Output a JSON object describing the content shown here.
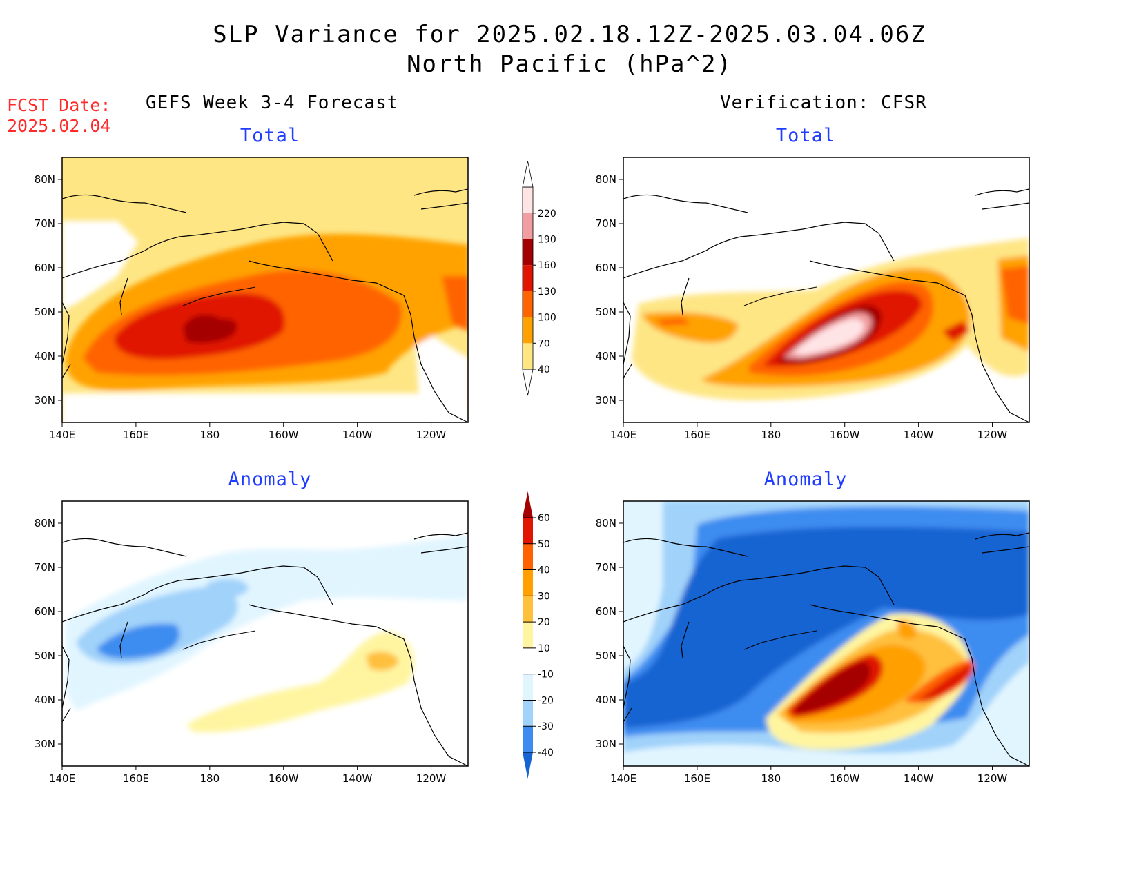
{
  "header": {
    "title_line1": "SLP Variance for 2025.02.18.12Z-2025.03.04.06Z",
    "title_line2": "North Pacific (hPa^2)",
    "fcst_label": "FCST Date:",
    "fcst_date": "2025.02.04"
  },
  "sections": {
    "left": "GEFS Week 3-4 Forecast",
    "right": "Verification: CFSR"
  },
  "panels": [
    {
      "id": "fc-total",
      "title": "Total"
    },
    {
      "id": "ver-total",
      "title": "Total"
    },
    {
      "id": "fc-anom",
      "title": "Anomaly"
    },
    {
      "id": "ver-anom",
      "title": "Anomaly"
    }
  ],
  "axes": {
    "lat_labels": [
      "80N",
      "70N",
      "60N",
      "50N",
      "40N",
      "30N"
    ],
    "lon_labels": [
      "140E",
      "160E",
      "180",
      "160W",
      "140W",
      "120W"
    ],
    "lat_range": [
      25,
      85
    ],
    "lon_range": [
      140,
      250
    ]
  },
  "colorbar_total": {
    "levels": [
      "40",
      "70",
      "100",
      "130",
      "160",
      "190",
      "220"
    ],
    "colors": [
      "#ffe680",
      "#ffa200",
      "#ff6400",
      "#e01400",
      "#a50000",
      "#f29ea0",
      "#ffe4e6"
    ]
  },
  "colorbar_anomaly": {
    "levels": [
      "-40",
      "-30",
      "-20",
      "-10",
      "10",
      "20",
      "30",
      "40",
      "50",
      "60"
    ],
    "colors": [
      "#1464d2",
      "#3c8cf0",
      "#a0d2fa",
      "#e1f5ff",
      "#ffffff",
      "#fff5a0",
      "#ffc03c",
      "#ffa000",
      "#ff6000",
      "#e01400",
      "#a50000"
    ]
  },
  "chart_data": [
    {
      "type": "heatmap",
      "panel": "GEFS Week 3-4 Forecast - Total",
      "units": "hPa^2",
      "features": [
        {
          "level_min": 40,
          "region": "broad North Pacific, ~30N-75N"
        },
        {
          "level_min": 70,
          "region": "~35N-65N, 140E-125W"
        },
        {
          "level_min": 100,
          "region": "~38N-55N, 145E-135W"
        },
        {
          "level_min": 130,
          "region": "~42N-53N, 165E-165W"
        },
        {
          "level_min": 160,
          "center": "~47N, 180"
        }
      ]
    },
    {
      "type": "heatmap",
      "panel": "Verification: CFSR - Total",
      "units": "hPa^2",
      "features": [
        {
          "level_min": 100,
          "region": "~38N-55N, 175E-130W"
        },
        {
          "level_min": 190,
          "center": "~43N, 165W"
        },
        {
          "level_min": 220,
          "center": "~43N, 165W"
        }
      ]
    },
    {
      "type": "heatmap",
      "panel": "GEFS Week 3-4 Forecast - Anomaly",
      "units": "hPa^2",
      "features": [
        {
          "level_max": -30,
          "center": "~50N, 160E"
        },
        {
          "level_min": 20,
          "center": "~50N, 130W"
        }
      ]
    },
    {
      "type": "heatmap",
      "panel": "Verification: CFSR - Anomaly",
      "units": "hPa^2",
      "features": [
        {
          "level_max": -40,
          "region": "Bering Sea / Arctic, ~40N-80N"
        },
        {
          "level_min": 60,
          "center": "~42N, 165W"
        },
        {
          "level_min": 50,
          "center": "~45N, 130W"
        }
      ]
    }
  ]
}
